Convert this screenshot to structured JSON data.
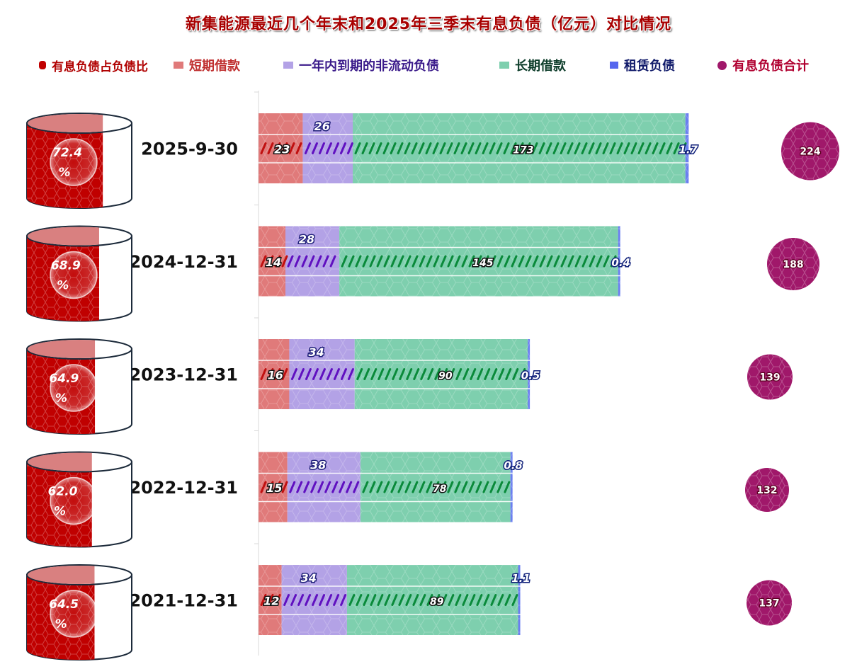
{
  "chart_data": {
    "type": "bar",
    "stacked": true,
    "orientation": "horizontal",
    "title": "新集能源最近几个年末和2025年三季末有息负债（亿元）对比情况",
    "categories": [
      "2025-9-30",
      "2024-12-31",
      "2023-12-31",
      "2022-12-31",
      "2021-12-31"
    ],
    "series": [
      {
        "name": "短期借款",
        "color": "#e07a7a",
        "values": [
          23,
          14,
          16,
          15,
          12
        ],
        "labels": [
          "23",
          "14",
          "16",
          "15",
          "12"
        ]
      },
      {
        "name": "一年内到期的非流动负债",
        "color": "#b3a2e6",
        "values": [
          26,
          28,
          34,
          38,
          34
        ],
        "labels": [
          "26",
          "28",
          "34",
          "38",
          "34"
        ]
      },
      {
        "name": "长期借款",
        "color": "#7ecfae",
        "values": [
          173,
          145,
          90,
          78,
          89
        ],
        "labels": [
          "173",
          "145",
          "90",
          "78",
          "89"
        ]
      },
      {
        "name": "租赁负债",
        "color": "#6b7ff0",
        "values": [
          1.7,
          0.4,
          0.5,
          0.8,
          1.1
        ],
        "labels": [
          "1.7",
          "0.4",
          "0.5",
          "0.8",
          "1.1"
        ]
      }
    ],
    "ratio": {
      "name": "有息负债占负债比",
      "color": "#c00000",
      "values": [
        72.4,
        68.9,
        64.9,
        62.0,
        64.5
      ],
      "labels": [
        "72.4",
        "68.9",
        "64.9",
        "62.0",
        "64.5"
      ],
      "unit": "%"
    },
    "total": {
      "name": "有息负债合计",
      "color": "#a0186a",
      "values": [
        224,
        188,
        139,
        132,
        137
      ],
      "labels": [
        "224",
        "188",
        "139",
        "132",
        "137"
      ]
    },
    "xlim": [
      0,
      224
    ],
    "grid": false,
    "legend_position": "top"
  }
}
